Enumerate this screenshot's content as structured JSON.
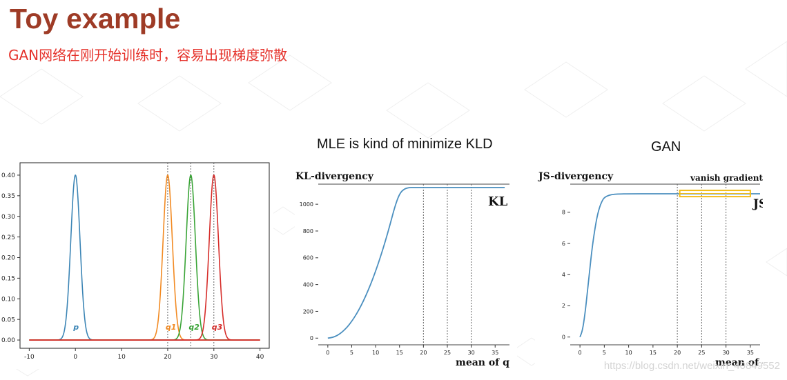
{
  "slide": {
    "title": "Toy example",
    "subtitle": "GAN网络在刚开始训练时，容易出现梯度弥散",
    "caption_mle": "MLE is kind of minimize KLD",
    "caption_gan": "GAN",
    "watermark": "https://blog.csdn.net/weixin_40849552"
  },
  "colors": {
    "title": "#9e3b26",
    "subtitle": "#e5312a",
    "p": "#3c85b5",
    "q1": "#f28a22",
    "q2": "#3aa437",
    "q3": "#d62d2a",
    "baseline": "#d62d2a",
    "curve": "#4b8fbf",
    "highlight": "#f2bd1a"
  },
  "chart_data": [
    {
      "type": "line",
      "xlim": [
        -12,
        42
      ],
      "ylim": [
        -0.02,
        0.43
      ],
      "xticks": [
        -10,
        0,
        10,
        20,
        30,
        40
      ],
      "yticks": [
        0.0,
        0.05,
        0.1,
        0.15,
        0.2,
        0.25,
        0.3,
        0.35,
        0.4
      ],
      "grid": false,
      "x_range": [
        -10,
        40
      ],
      "peak": 0.4,
      "series": [
        {
          "name": "p",
          "mean": 0,
          "sd": 1,
          "color": "#3c85b5"
        },
        {
          "name": "q1",
          "mean": 20,
          "sd": 1,
          "color": "#f28a22"
        },
        {
          "name": "q2",
          "mean": 25,
          "sd": 1,
          "color": "#3aa437"
        },
        {
          "name": "q3",
          "mean": 30,
          "sd": 1,
          "color": "#d62d2a"
        }
      ],
      "vlines": [
        20,
        25,
        30
      ],
      "labels": [
        {
          "text": "p",
          "x": 0,
          "y": 0.035,
          "color": "#3c85b5"
        },
        {
          "text": "q1",
          "x": 20,
          "y": 0.035,
          "color": "#f28a22"
        },
        {
          "text": "q2",
          "x": 25,
          "y": 0.035,
          "color": "#3aa437"
        },
        {
          "text": "q3",
          "x": 30,
          "y": 0.035,
          "color": "#d62d2a"
        }
      ]
    },
    {
      "type": "line",
      "title": "KL-divergency",
      "xlabel": "mean of q",
      "annotation": "KL",
      "xlim": [
        -2,
        38
      ],
      "ylim": [
        -50,
        1150
      ],
      "xticks": [
        0,
        5,
        10,
        15,
        20,
        25,
        30,
        35
      ],
      "yticks": [
        0,
        200,
        400,
        600,
        800,
        1000
      ],
      "vlines": [
        20,
        25,
        30
      ],
      "grid": false,
      "series": [
        {
          "x": [
            0,
            1,
            2,
            3,
            4,
            5,
            6,
            7,
            8,
            9,
            10,
            11,
            12,
            13,
            14,
            15,
            16,
            17,
            18,
            20,
            25,
            30,
            37
          ],
          "y": [
            0,
            5,
            20,
            45,
            80,
            125,
            180,
            245,
            320,
            405,
            500,
            605,
            720,
            845,
            980,
            1080,
            1115,
            1125,
            1125,
            1125,
            1125,
            1125,
            1125
          ]
        }
      ]
    },
    {
      "type": "line",
      "title": "JS-divergency",
      "xlabel": "mean of q",
      "annotation": "JS",
      "highlight_label": "vanish gradient",
      "highlight_x": [
        20.5,
        35
      ],
      "highlight_y": [
        9.0,
        9.4
      ],
      "xlim": [
        -2,
        37
      ],
      "ylim": [
        -0.5,
        9.8
      ],
      "xticks": [
        0,
        5,
        10,
        15,
        20,
        25,
        30,
        35
      ],
      "yticks": [
        0,
        2,
        4,
        6,
        8
      ],
      "vlines": [
        20,
        25,
        30
      ],
      "grid": false,
      "series": [
        {
          "x": [
            0,
            0.5,
            1,
            1.5,
            2,
            2.5,
            3,
            3.5,
            4,
            4.5,
            5,
            6,
            7,
            8,
            10,
            15,
            20,
            25,
            30,
            37
          ],
          "y": [
            0,
            0.4,
            1.4,
            2.8,
            4.3,
            5.7,
            6.8,
            7.7,
            8.3,
            8.7,
            8.95,
            9.1,
            9.15,
            9.17,
            9.18,
            9.18,
            9.18,
            9.18,
            9.18,
            9.18
          ]
        }
      ]
    }
  ]
}
